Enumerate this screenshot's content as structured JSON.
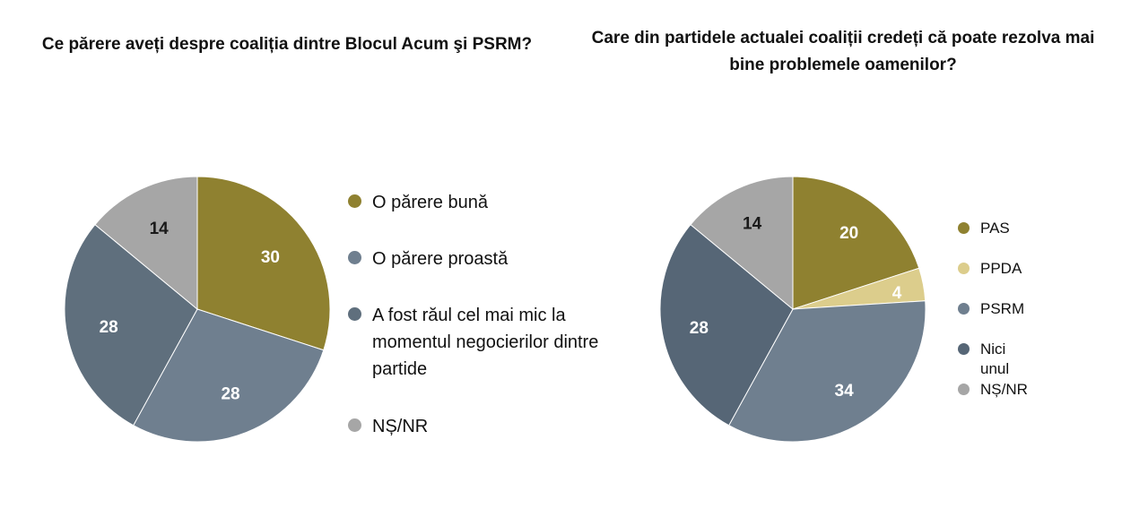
{
  "chart_data": [
    {
      "type": "pie",
      "title": "Ce părere aveți despre coaliția dintre Blocul Acum şi PSRM?",
      "slices": [
        {
          "label": "O părere bună",
          "value": 30,
          "color": "#8f8130"
        },
        {
          "label": "O părere proastă",
          "value": 28,
          "color": "#6f7f8f"
        },
        {
          "label": "A fost răul cel mai mic la momentul negocierilor dintre partide",
          "value": 28,
          "color": "#5f6f7d"
        },
        {
          "label": "NȘ/NR",
          "value": 14,
          "color": "#a6a6a6"
        }
      ],
      "legend_position": "right"
    },
    {
      "type": "pie",
      "title": "Care din partidele actualei coaliții credeți că poate rezolva mai bine problemele oamenilor?",
      "slices": [
        {
          "label": "PAS",
          "value": 20,
          "color": "#8f8130"
        },
        {
          "label": "PPDA",
          "value": 4,
          "color": "#dccd8c"
        },
        {
          "label": "PSRM",
          "value": 34,
          "color": "#6f7f8f"
        },
        {
          "label": "Nici unul",
          "value": 28,
          "color": "#566676"
        },
        {
          "label": "NȘ/NR",
          "value": 14,
          "color": "#a6a6a6"
        }
      ],
      "legend_position": "right"
    }
  ]
}
